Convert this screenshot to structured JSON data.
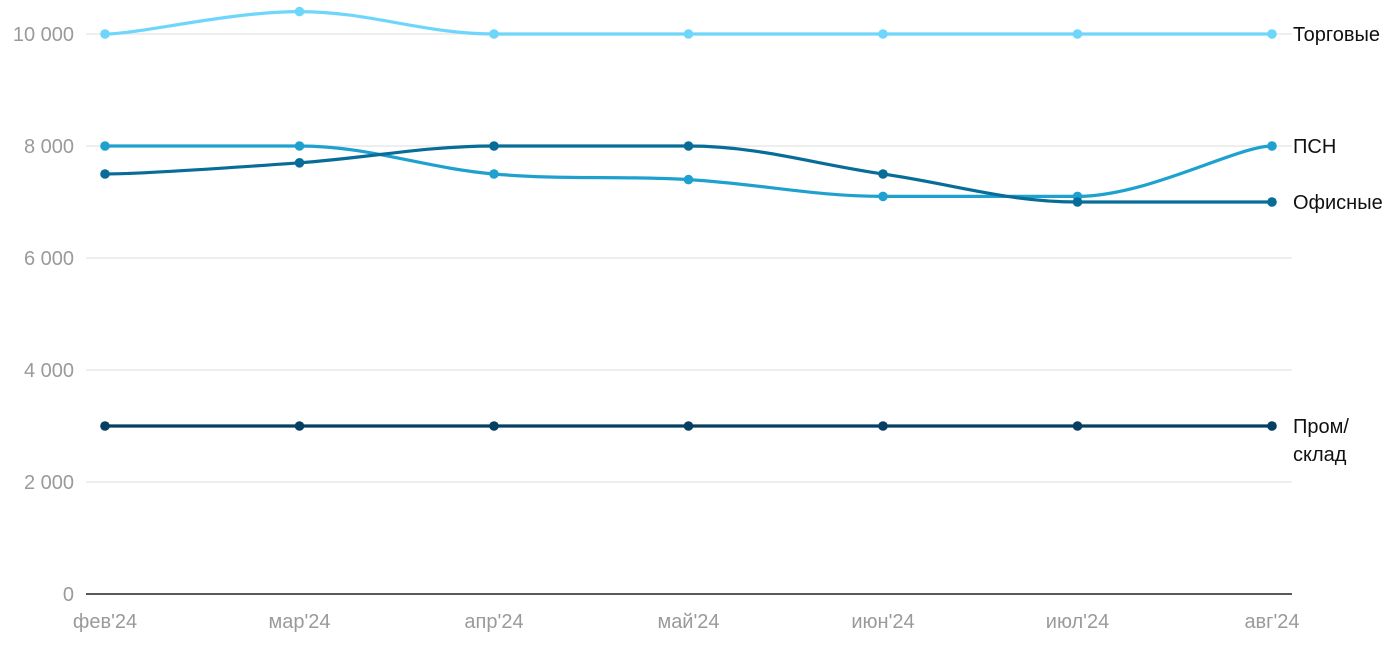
{
  "chart_data": {
    "type": "line",
    "title": "",
    "xlabel": "",
    "ylabel": "",
    "categories": [
      "фев'24",
      "мар'24",
      "апр'24",
      "май'24",
      "июн'24",
      "июл'24",
      "авг'24"
    ],
    "ylim": [
      0,
      10000
    ],
    "yticks": [
      0,
      2000,
      4000,
      6000,
      8000,
      10000
    ],
    "ytick_labels": [
      "0",
      "2 000",
      "4 000",
      "6 000",
      "8 000",
      "10 000"
    ],
    "grid": true,
    "legend": "inline-right",
    "series": [
      {
        "name": "Торговые",
        "color": "#6fd6fb",
        "values": [
          10000,
          10400,
          10000,
          10000,
          10000,
          10000,
          10000
        ]
      },
      {
        "name": "ПСН",
        "color": "#1ea1cf",
        "values": [
          8000,
          8000,
          7500,
          7400,
          7100,
          7100,
          8000
        ]
      },
      {
        "name": "Офисные",
        "color": "#086c98",
        "values": [
          7500,
          7700,
          8000,
          8000,
          7500,
          7000,
          7000
        ]
      },
      {
        "name": "Пром/ склад",
        "color": "#063f61",
        "values": [
          3000,
          3000,
          3000,
          3000,
          3000,
          3000,
          3000
        ]
      }
    ]
  }
}
